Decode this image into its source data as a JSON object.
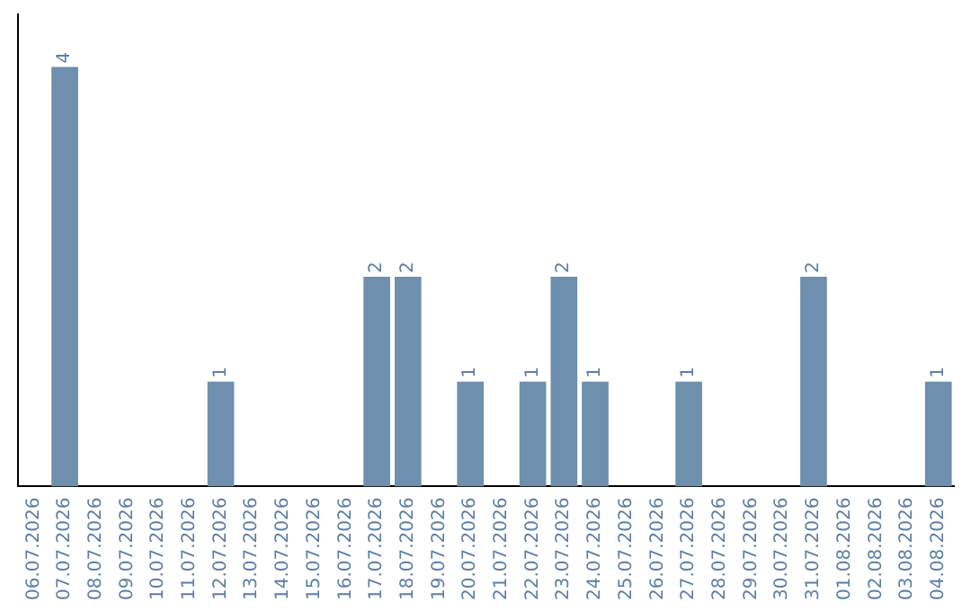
{
  "chart_data": {
    "type": "bar",
    "categories": [
      "06.07.2026",
      "07.07.2026",
      "08.07.2026",
      "09.07.2026",
      "10.07.2026",
      "11.07.2026",
      "12.07.2026",
      "13.07.2026",
      "14.07.2026",
      "15.07.2026",
      "16.07.2026",
      "17.07.2026",
      "18.07.2026",
      "19.07.2026",
      "20.07.2026",
      "21.07.2026",
      "22.07.2026",
      "23.07.2026",
      "24.07.2026",
      "25.07.2026",
      "26.07.2026",
      "27.07.2026",
      "28.07.2026",
      "29.07.2026",
      "30.07.2026",
      "31.07.2026",
      "01.08.2026",
      "02.08.2026",
      "03.08.2026",
      "04.08.2026"
    ],
    "values": [
      0,
      4,
      0,
      0,
      0,
      0,
      1,
      0,
      0,
      0,
      0,
      2,
      2,
      0,
      1,
      0,
      1,
      2,
      1,
      0,
      0,
      1,
      0,
      0,
      0,
      2,
      0,
      0,
      0,
      1
    ],
    "value_labels": [
      null,
      "4",
      null,
      null,
      null,
      null,
      "1",
      null,
      null,
      null,
      null,
      "2",
      "2",
      null,
      "1",
      null,
      "1",
      "2",
      "1",
      null,
      null,
      "1",
      null,
      null,
      null,
      "2",
      null,
      null,
      null,
      "1"
    ],
    "color": "#6e8fad",
    "grid": false,
    "legend": false,
    "tick_labels": "x"
  }
}
